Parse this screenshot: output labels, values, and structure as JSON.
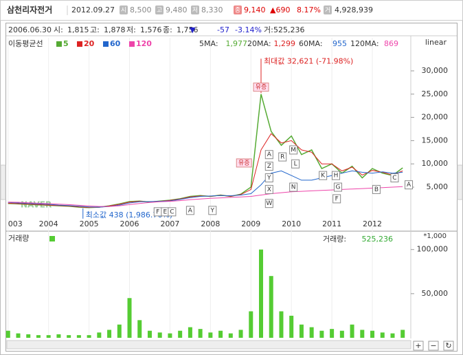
{
  "header": {
    "name": "삼천리자전거",
    "date": "2012.09.27",
    "fields": [
      {
        "label": "시",
        "value": "8,500"
      },
      {
        "label": "고",
        "value": "9,480"
      },
      {
        "label": "저",
        "value": "8,330"
      }
    ],
    "close": {
      "label": "종",
      "value": "9,140"
    },
    "change": "▲690",
    "change_pct": "8.17%",
    "volume": {
      "label": "거",
      "value": "4,928,939"
    }
  },
  "info": {
    "date": "2006.06.30",
    "fields": [
      {
        "label": "시:",
        "value": "1,815"
      },
      {
        "label": "고:",
        "value": "1,878"
      },
      {
        "label": "저:",
        "value": "1,576"
      },
      {
        "label": "종:",
        "value": "1,756"
      }
    ],
    "arrow": "▼",
    "change": "-57",
    "change_pct": "-3.14%",
    "volume": {
      "label": "거:",
      "value": "525,236"
    }
  },
  "chart_data": [
    {
      "type": "line",
      "legend_title": "이동평균선",
      "scale": "linear",
      "watermark": "NAVER",
      "x": [
        2003,
        2003.25,
        2003.5,
        2003.75,
        2004,
        2004.25,
        2004.5,
        2004.75,
        2005,
        2005.25,
        2005.5,
        2005.75,
        2006,
        2006.25,
        2006.5,
        2006.75,
        2007,
        2007.25,
        2007.5,
        2007.75,
        2008,
        2008.25,
        2008.5,
        2008.75,
        2009,
        2009.25,
        2009.5,
        2009.75,
        2010,
        2010.25,
        2010.5,
        2010.75,
        2011,
        2011.25,
        2011.5,
        2011.75,
        2012,
        2012.25,
        2012.5,
        2012.75
      ],
      "series": [
        {
          "name": "5",
          "color": "#55aa33",
          "ma_label": "5MA:",
          "ma_value": "1,977",
          "values": [
            1500,
            1400,
            1300,
            1200,
            1100,
            1000,
            900,
            700,
            600,
            700,
            1000,
            1400,
            1900,
            2000,
            1800,
            2000,
            2200,
            2500,
            3000,
            3200,
            3000,
            3300,
            3000,
            3500,
            5000,
            25000,
            17000,
            14000,
            16000,
            12000,
            13000,
            9000,
            10000,
            8000,
            9500,
            7000,
            9000,
            8000,
            7500,
            9140
          ]
        },
        {
          "name": "20",
          "color": "#dd2222",
          "ma_label": "20MA:",
          "ma_value": "1,299",
          "values": [
            1550,
            1450,
            1350,
            1250,
            1150,
            1050,
            950,
            780,
            650,
            680,
            950,
            1300,
            1800,
            1950,
            1850,
            1950,
            2150,
            2450,
            2900,
            3100,
            3050,
            3250,
            3050,
            3400,
            4500,
            13000,
            16500,
            14500,
            15000,
            13000,
            12500,
            10000,
            10000,
            8500,
            9300,
            7600,
            8600,
            8200,
            7600,
            8500
          ]
        },
        {
          "name": "60",
          "color": "#2266cc",
          "ma_label": "60MA:",
          "ma_value": "955",
          "values": [
            1700,
            1600,
            1500,
            1400,
            1300,
            1150,
            1050,
            900,
            750,
            700,
            850,
            1150,
            1600,
            1850,
            1900,
            1950,
            2050,
            2350,
            2750,
            3000,
            3100,
            3200,
            3150,
            3300,
            3600,
            5500,
            8000,
            8500,
            7500,
            6500,
            6500,
            7000,
            7500,
            8000,
            8500,
            8200,
            8000,
            8300,
            8000,
            8200
          ]
        },
        {
          "name": "120",
          "color": "#ee44aa",
          "ma_label": "120MA:",
          "ma_value": "869",
          "values": [
            1800,
            1750,
            1650,
            1550,
            1450,
            1350,
            1250,
            1100,
            950,
            850,
            850,
            1000,
            1250,
            1500,
            1700,
            1850,
            1950,
            2100,
            2300,
            2450,
            2600,
            2700,
            2800,
            2900,
            3000,
            3300,
            3600,
            3800,
            4000,
            4100,
            4200,
            4300,
            4400,
            4500,
            4600,
            4700,
            4800,
            4900,
            5000,
            5100
          ]
        }
      ],
      "xlim": [
        2002.97,
        2012.95
      ],
      "xticks": [
        {
          "value": 2003,
          "label": "003"
        },
        2004,
        2005,
        2006,
        2007,
        2008,
        2009,
        2010,
        2011,
        2012
      ],
      "ylim": [
        -1800,
        37100
      ],
      "yticks": [
        {
          "value": 5000,
          "label": "5,000"
        },
        {
          "value": 10000,
          "label": "10,000"
        },
        {
          "value": 15000,
          "label": "15,000"
        },
        {
          "value": 20000,
          "label": "20,000"
        },
        {
          "value": 25000,
          "label": "25,000"
        },
        {
          "value": 30000,
          "label": "30,000"
        }
      ],
      "annotations": [
        {
          "text": "최대값 32,621 (-71.98%)",
          "x": 2009.25,
          "y": 32621,
          "color": "#dd2222"
        },
        {
          "text": "최소값 438 (1,986.76%)",
          "x": 2004.85,
          "y": 438,
          "color": "#2266cc"
        }
      ],
      "events": [
        {
          "label": "유증",
          "x": 2009.25,
          "y": 26500
        },
        {
          "label": "유증",
          "x": 2008.83,
          "y": 10200
        },
        {
          "label": "F",
          "x": 2006.7,
          "y": -300
        },
        {
          "label": "E",
          "x": 2006.88,
          "y": -300
        },
        {
          "label": "C",
          "x": 2007.05,
          "y": -300
        },
        {
          "label": "A",
          "x": 2007.5,
          "y": 0
        },
        {
          "label": "Y",
          "x": 2008.05,
          "y": 0
        },
        {
          "label": "A",
          "x": 2009.45,
          "y": 12000
        },
        {
          "label": "Z",
          "x": 2009.45,
          "y": 9500
        },
        {
          "label": "Y",
          "x": 2009.45,
          "y": 7000
        },
        {
          "label": "X",
          "x": 2009.45,
          "y": 4500
        },
        {
          "label": "W",
          "x": 2009.45,
          "y": 1500
        },
        {
          "label": "R",
          "x": 2009.78,
          "y": 11500
        },
        {
          "label": "M",
          "x": 2010.05,
          "y": 13000
        },
        {
          "label": "L",
          "x": 2010.1,
          "y": 10000
        },
        {
          "label": "N",
          "x": 2010.05,
          "y": 5000
        },
        {
          "label": "K",
          "x": 2010.78,
          "y": 7500
        },
        {
          "label": "H",
          "x": 2011.1,
          "y": 7500
        },
        {
          "label": "G",
          "x": 2011.15,
          "y": 5000
        },
        {
          "label": "F",
          "x": 2011.12,
          "y": 2500
        },
        {
          "label": "C",
          "x": 2012.55,
          "y": 7000
        },
        {
          "label": "B",
          "x": 2012.1,
          "y": 4500
        },
        {
          "label": "A",
          "x": 2012.9,
          "y": 5500
        }
      ]
    },
    {
      "type": "bar",
      "title": "거래량",
      "legend_label": "거래량:",
      "legend_value": "525,236",
      "unit": "*1,000",
      "color": "#55cc33",
      "x": [
        2003,
        2003.25,
        2003.5,
        2003.75,
        2004,
        2004.25,
        2004.5,
        2004.75,
        2005,
        2005.25,
        2005.5,
        2005.75,
        2006,
        2006.25,
        2006.5,
        2006.75,
        2007,
        2007.25,
        2007.5,
        2007.75,
        2008,
        2008.25,
        2008.5,
        2008.75,
        2009,
        2009.25,
        2009.5,
        2009.75,
        2010,
        2010.25,
        2010.5,
        2010.75,
        2011,
        2011.25,
        2011.5,
        2011.75,
        2012,
        2012.25,
        2012.5,
        2012.75
      ],
      "values": [
        8000,
        5000,
        4000,
        3000,
        3000,
        4000,
        3000,
        3000,
        3000,
        6000,
        9000,
        15000,
        45000,
        20000,
        8000,
        6000,
        5000,
        8000,
        12000,
        10000,
        6000,
        8000,
        5000,
        9000,
        30000,
        100000,
        70000,
        30000,
        25000,
        15000,
        12000,
        8000,
        10000,
        8000,
        15000,
        9000,
        8000,
        6000,
        5000,
        9000
      ],
      "xlim": [
        2002.97,
        2012.95
      ],
      "ylim": [
        0,
        106000
      ],
      "yticks": [
        {
          "value": 50000,
          "label": "50,000"
        },
        {
          "value": 100000,
          "label": "100,000"
        }
      ]
    }
  ]
}
